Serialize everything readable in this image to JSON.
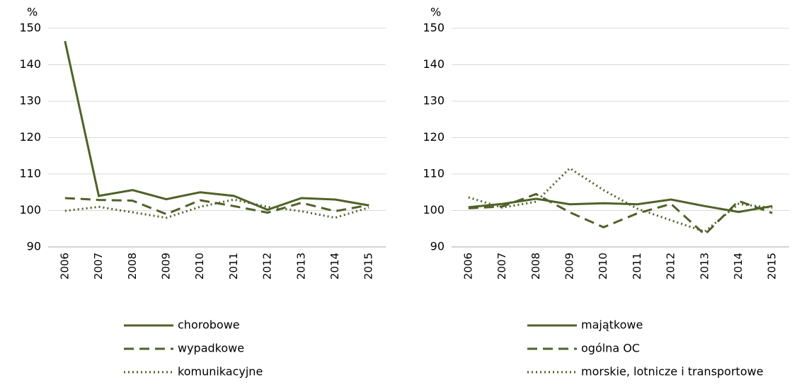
{
  "chart_data": [
    {
      "type": "line",
      "ylabel": "%",
      "categories": [
        "2006",
        "2007",
        "2008",
        "2009",
        "2010",
        "2011",
        "2012",
        "2013",
        "2014",
        "2015"
      ],
      "ylim": [
        90,
        150
      ],
      "yticks": [
        90,
        100,
        110,
        120,
        130,
        140,
        150
      ],
      "grid": true,
      "legend": "bottom",
      "series": [
        {
          "name": "chorobowe",
          "color": "#4f6228",
          "dash": "solid",
          "values": [
            146.5,
            104,
            105.6,
            103.1,
            105,
            104,
            100.2,
            103.4,
            103,
            101.4
          ]
        },
        {
          "name": "wypadkowe",
          "color": "#4f6228",
          "dash": "dashed",
          "values": [
            103.4,
            102.9,
            102.7,
            99,
            102.8,
            101.2,
            99.4,
            102.1,
            99.8,
            101.5
          ]
        },
        {
          "name": "komunikacyjne",
          "color": "#4f6228",
          "dash": "dotted",
          "values": [
            99.9,
            101,
            99.5,
            98,
            101,
            103,
            101,
            99.8,
            98,
            100.8
          ]
        }
      ]
    },
    {
      "type": "line",
      "ylabel": "%",
      "categories": [
        "2006",
        "2007",
        "2008",
        "2009",
        "2010",
        "2011",
        "2012",
        "2013",
        "2014",
        "2015"
      ],
      "ylim": [
        90,
        150
      ],
      "yticks": [
        90,
        100,
        110,
        120,
        130,
        140,
        150
      ],
      "grid": true,
      "legend": "bottom",
      "series": [
        {
          "name": "majątkowe",
          "color": "#4f6228",
          "dash": "solid",
          "values": [
            100.9,
            101.8,
            103.2,
            101.7,
            102,
            101.7,
            103,
            101.2,
            99.6,
            101.2
          ]
        },
        {
          "name": "ogólna OC",
          "color": "#4f6228",
          "dash": "dashed",
          "values": [
            100.6,
            101.1,
            104.5,
            99.5,
            95.4,
            99.2,
            101.8,
            93.4,
            102.6,
            99.3
          ]
        },
        {
          "name": "morskie, lotnicze i transportowe",
          "color": "#4f6228",
          "dash": "dotted",
          "values": [
            103.6,
            100.8,
            102.4,
            111.6,
            105.6,
            100.5,
            97.3,
            94.2,
            101.8,
            100.7
          ]
        }
      ]
    }
  ]
}
